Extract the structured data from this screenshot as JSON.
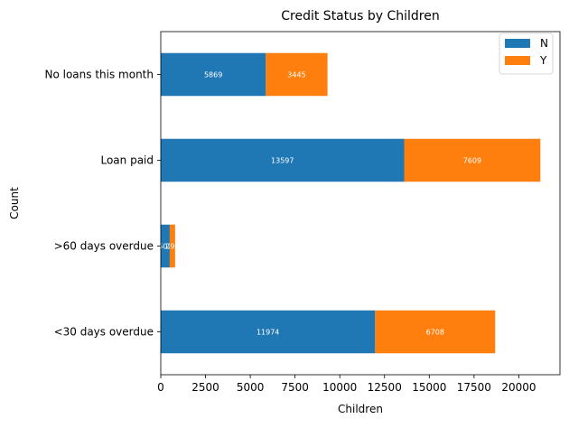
{
  "chart_data": {
    "type": "bar",
    "orientation": "horizontal",
    "stacked": true,
    "title": "Credit Status by Children",
    "xlabel": "Children",
    "ylabel": "Count",
    "xlim": [
      0,
      22300
    ],
    "xticks": [
      0,
      2500,
      5000,
      7500,
      10000,
      12500,
      15000,
      17500,
      20000
    ],
    "categories": [
      "<30 days overdue",
      ">60 days overdue",
      "Loan paid",
      "No loans this month"
    ],
    "series": [
      {
        "name": "N",
        "color": "#1f77b4",
        "values": [
          11974,
          502,
          13597,
          5869
        ]
      },
      {
        "name": "Y",
        "color": "#ff7f0e",
        "values": [
          6708,
          298,
          7609,
          3445
        ]
      }
    ],
    "data_labels": {
      "N": [
        "11974",
        "502",
        "13597",
        "5869"
      ],
      "Y": [
        "6708",
        "298",
        "7609",
        "3445"
      ]
    },
    "legend": {
      "position": "top-right",
      "entries": [
        "N",
        "Y"
      ]
    },
    "grid": false
  }
}
